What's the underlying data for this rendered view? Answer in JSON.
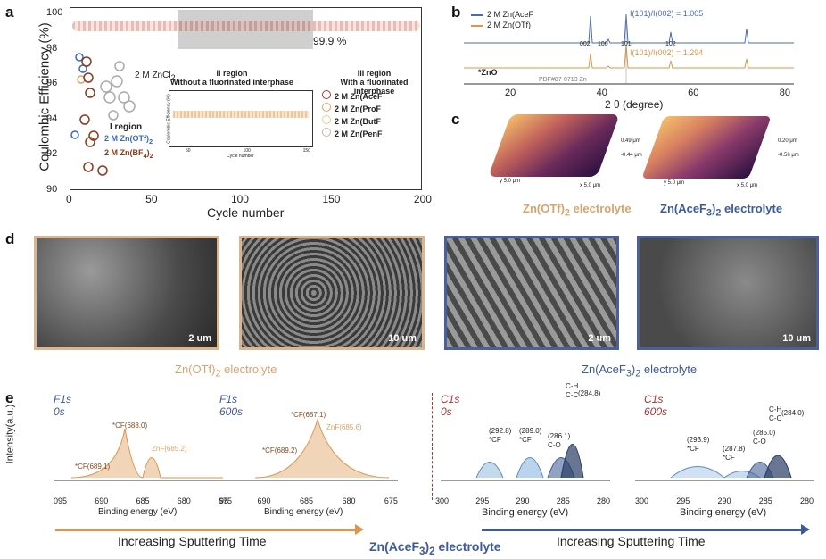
{
  "panels": {
    "a": "a",
    "b": "b",
    "c": "c",
    "d": "d",
    "e": "e"
  },
  "panel_a": {
    "ylabel": "Coulombic Efficiency (%)",
    "xlabel": "Cycle number",
    "xticks": [
      "0",
      "50",
      "100",
      "150",
      "200"
    ],
    "yticks": [
      "90",
      "92",
      "94",
      "96",
      "98",
      "100"
    ],
    "label_999": "99.9 %",
    "region1": "I region",
    "region2_title": "II region",
    "region2_sub": "Without a fluorinated interphase",
    "region3_title": "III region",
    "region3_sub": "With a fluorinated interphase",
    "zncl2": "2 M ZnCl",
    "zncl2_sub": "2",
    "legend_left": [
      {
        "text": "2 M Zn(OTf)",
        "sub": "2",
        "color": "#3b68b8"
      },
      {
        "text": "2 M Zn(BF",
        "sub": "4",
        "tail": ")",
        "sub2": "2",
        "color": "#8b3a1c"
      }
    ],
    "legend_right": [
      {
        "text": "2 M Zn(AceF",
        "color": "#a03a3a"
      },
      {
        "text": "2 M Zn(ProF",
        "color": "#e0a070"
      },
      {
        "text": "2 M Zn(ButF",
        "color": "#e6cf8a"
      },
      {
        "text": "2 M Zn(PenF",
        "color": "#c8b7a3"
      }
    ],
    "inset_ylabel": "Coulombic Efficiency (%)",
    "inset_xlabel": "Cycle number",
    "inset_xticks": [
      "50",
      "100",
      "150"
    ]
  },
  "panel_b": {
    "legend": [
      "2 M Zn(AceF",
      "2 M Zn(OTf)"
    ],
    "ratio_top": "I(101)/I(002) = 1.005",
    "ratio_bottom": "I(101)/I(002) = 1.294",
    "peaks": [
      "002",
      "100",
      "101",
      "102"
    ],
    "zno": "*ZnO",
    "pdf": "PDF#87-0713 Zn",
    "xlabel": "2 θ (degree)",
    "xticks": [
      "20",
      "40",
      "60",
      "80"
    ]
  },
  "panel_c": {
    "left_scale_top": "0.49 μm",
    "left_scale_bot": "-0.44 μm",
    "right_scale_top": "0.20 μm",
    "right_scale_bot": "-0.56 μm",
    "left_axis1": "x 5.0 μm",
    "left_axis2": "y 5.0 μm",
    "right_axis1": "x 5.0 μm",
    "right_axis2": "y 5.0 μm",
    "caption_left": "Zn(OTf)",
    "caption_left_sub": "2",
    "caption_left_tail": " electrolyte",
    "caption_right": "Zn(AceF",
    "caption_right_sub": "3",
    "caption_right_tail": ")",
    "caption_right_sub2": "2",
    "caption_right_tail2": " electrolyte"
  },
  "panel_d": {
    "scales": [
      "2 um",
      "10 um",
      "2 um",
      "10 um"
    ],
    "caption_left": "Zn(OTf)",
    "caption_left_sub": "2",
    "caption_left_tail": " electrolyte",
    "caption_right": "Zn(AceF",
    "caption_right_sub": "3",
    "caption_right_tail": ")",
    "caption_right_sub2": "2",
    "caption_right_tail2": " electrolyte"
  },
  "panel_e": {
    "ylabel": "Intensity(a.u.)",
    "spectra": [
      {
        "title": "F1s",
        "time": "0s",
        "xticks": [
          "095",
          "690",
          "685",
          "680",
          "675"
        ],
        "xlabel": "Binding energy (eV)",
        "labels": [
          "*CF(688.0)",
          "*CF",
          "(689.1)",
          "ZnF",
          "(685.2)"
        ]
      },
      {
        "title": "F1s",
        "time": "600s",
        "xticks": [
          "95",
          "690",
          "685",
          "680",
          "675"
        ],
        "xlabel": "Binding energy (eV)",
        "labels": [
          "*CF(687.1)",
          "ZnF",
          "(685.6)",
          "*CF",
          "(689.2)"
        ]
      },
      {
        "title": "C1s",
        "time": "0s",
        "xticks": [
          "300",
          "295",
          "290",
          "285",
          "280"
        ],
        "xlabel": "Binding energy (eV)",
        "labels": [
          "(292.8)",
          "*CF",
          "(289.0)",
          "*CF",
          "(286.1)",
          "C-O",
          "C-H",
          "C-C",
          "(284.8)"
        ]
      },
      {
        "title": "C1s",
        "time": "600s",
        "xticks": [
          "300",
          "295",
          "290",
          "285",
          "280"
        ],
        "xlabel": "Binding energy (eV)",
        "labels": [
          "(293.9)",
          "*CF",
          "(287.8)",
          "*CF",
          "(285.0)",
          "C-O",
          "C-H",
          "C-C",
          "(284.0)"
        ]
      }
    ],
    "sputter_left": "Increasing Sputtering Time",
    "sputter_right": "Increasing Sputtering Time",
    "center_caption": "Zn(AceF",
    "center_sub": "3",
    "center_tail": ")",
    "center_sub2": "2",
    "center_tail2": " electrolyte"
  }
}
